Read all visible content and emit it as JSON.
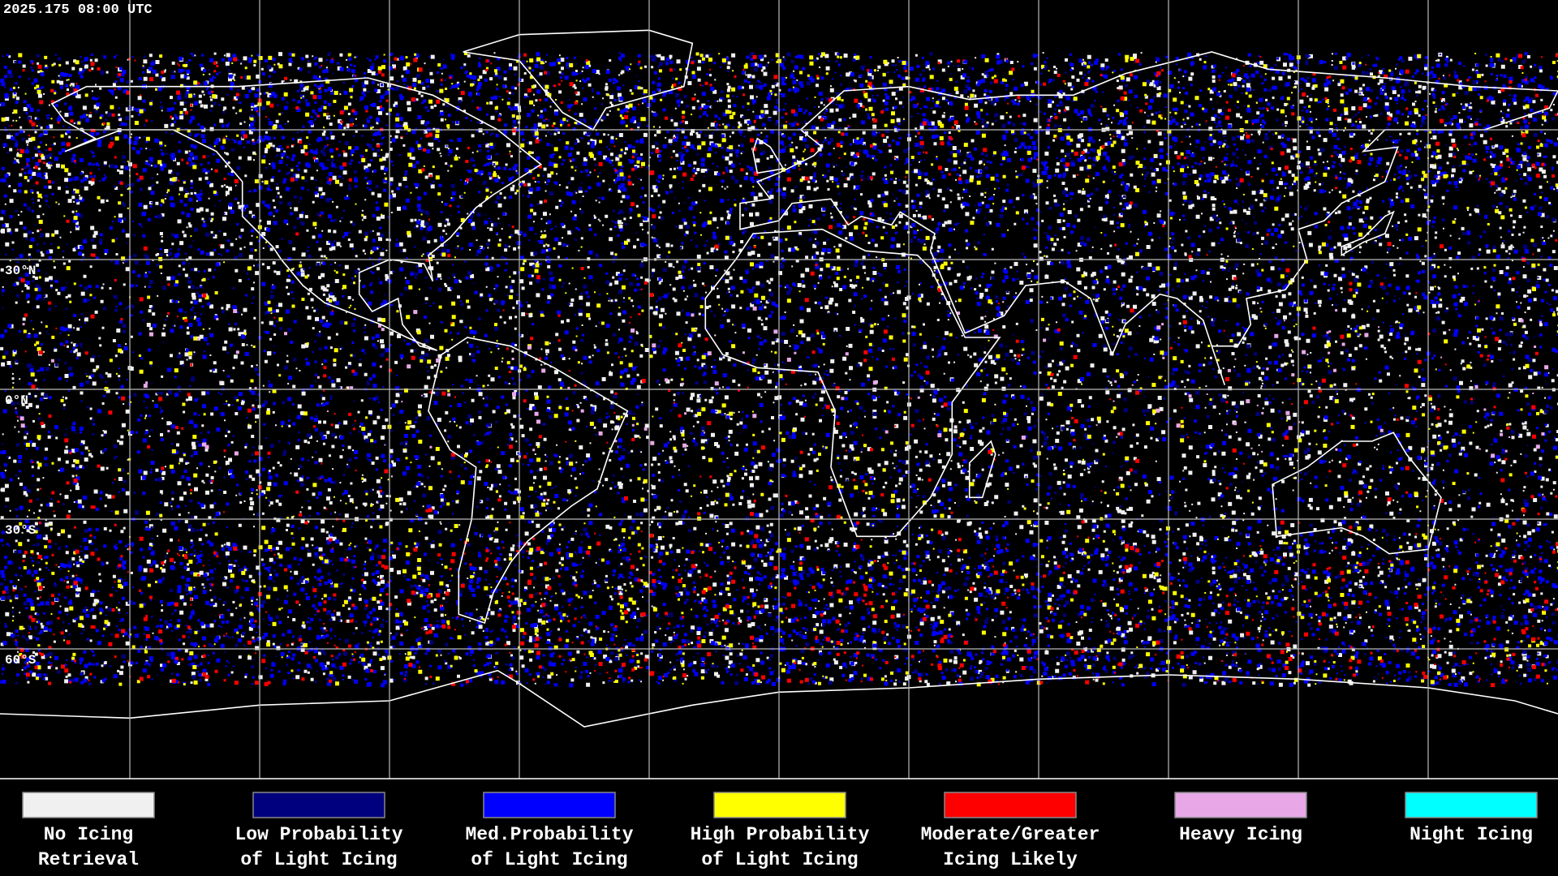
{
  "header": {
    "title": "2025.175 08:00 UTC"
  },
  "map": {
    "lat_labels": [
      "30°N",
      "0°N",
      "30°S",
      "60°S"
    ]
  },
  "legend": [
    {
      "color": "#f0f0f0",
      "lines": [
        "No Icing",
        "Retrieval"
      ]
    },
    {
      "color": "#00007f",
      "lines": [
        "Low Probability",
        "of Light Icing"
      ]
    },
    {
      "color": "#0000ff",
      "lines": [
        "Med.Probability",
        "of Light Icing"
      ]
    },
    {
      "color": "#ffff00",
      "lines": [
        "High Probability",
        "of Light Icing"
      ]
    },
    {
      "color": "#ff0000",
      "lines": [
        "Moderate/Greater",
        "Icing Likely"
      ]
    },
    {
      "color": "#e8a8e8",
      "lines": [
        "Heavy Icing"
      ]
    },
    {
      "color": "#00ffff",
      "lines": [
        "Night Icing"
      ]
    }
  ]
}
